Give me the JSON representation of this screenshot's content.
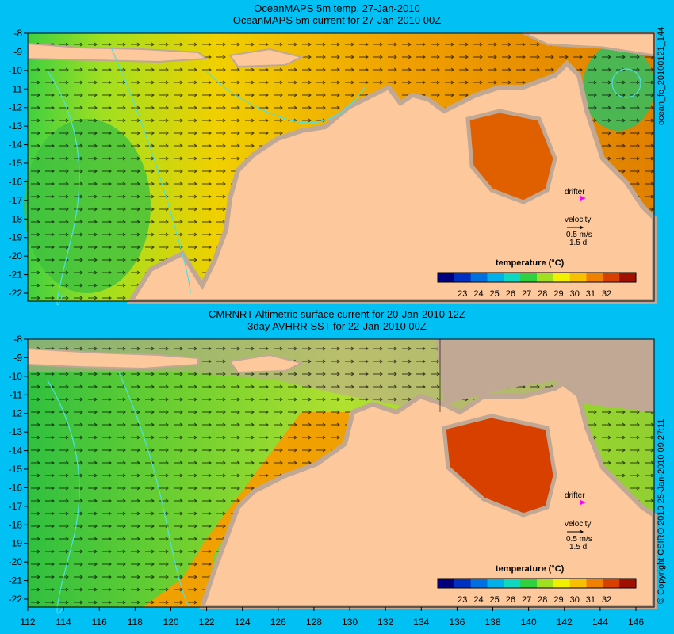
{
  "panels": [
    {
      "title_line1": "OceanMAPS 5m temp. 27-Jan-2010",
      "title_line2": "OceanMAPS 5m current for 27-Jan-2010 00Z",
      "side_label": "ocean_fc_20100121_144",
      "legend_title": "temperature (°C)",
      "drifter_label": "drifter",
      "velocity_label": "velocity",
      "velocity_value": "0.5 m/s",
      "velocity_days": "1.5 d"
    },
    {
      "title_line1": "CMRNRT Altimetric surface current for 20-Jan-2010 12Z",
      "title_line2": "3day AVHRR SST for 22-Jan-2010 00Z",
      "side_label": "© Copyright CSIRO 2010   25-Jan-2010 09:27:11",
      "legend_title": "temperature (°C)",
      "drifter_label": "drifter",
      "velocity_label": "velocity",
      "velocity_value": "0.5 m/s",
      "velocity_days": "1.5 d"
    }
  ],
  "lat_ticks": [
    "-8",
    "-9",
    "-10",
    "-11",
    "-12",
    "-13",
    "-14",
    "-15",
    "-16",
    "-17",
    "-18",
    "-19",
    "-20",
    "-21",
    "-22"
  ],
  "lon_ticks": [
    "112",
    "114",
    "116",
    "118",
    "120",
    "122",
    "124",
    "126",
    "128",
    "130",
    "132",
    "134",
    "136",
    "138",
    "140",
    "142",
    "144",
    "146"
  ],
  "colorbar": {
    "labels": [
      "23",
      "24",
      "25",
      "26",
      "27",
      "28",
      "29",
      "30",
      "31",
      "32"
    ],
    "colors": [
      "#00007f",
      "#0030c0",
      "#0070e0",
      "#00b0e8",
      "#10d8c0",
      "#30d040",
      "#a0e020",
      "#f0f000",
      "#f8c000",
      "#f08000",
      "#d84000",
      "#a01000"
    ]
  },
  "colors": {
    "background": "#00c0f4",
    "land": "#fcc89c",
    "shelf": "#c0a894",
    "contour": "#50e0e0",
    "drifter": "#ff00ff"
  }
}
